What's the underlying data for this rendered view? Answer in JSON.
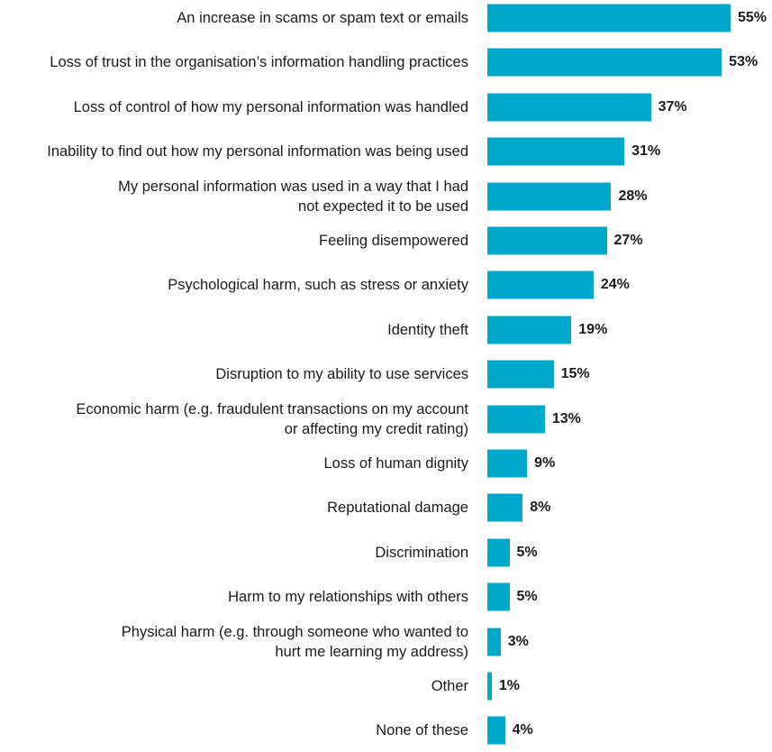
{
  "chart_data": {
    "type": "bar",
    "orientation": "horizontal",
    "color": "#00a8cc",
    "categories": [
      [
        "An increase in scams or spam text or emails"
      ],
      [
        "Loss of trust in the organisation’s information handling practices"
      ],
      [
        "Loss of control of how my personal information was handled"
      ],
      [
        "Inability to find out how my personal information was being used"
      ],
      [
        "My personal information was used in a way that I had",
        "not expected it to be used"
      ],
      [
        "Feeling disempowered"
      ],
      [
        "Psychological harm, such as stress or anxiety"
      ],
      [
        "Identity theft"
      ],
      [
        "Disruption to my ability to use services"
      ],
      [
        "Economic harm (e.g. fraudulent transactions on my account",
        "or affecting my credit rating)"
      ],
      [
        "Loss of human dignity"
      ],
      [
        "Reputational damage"
      ],
      [
        "Discrimination"
      ],
      [
        "Harm to my relationships with others"
      ],
      [
        "Physical harm (e.g. through someone who wanted to",
        "hurt me learning my address)"
      ],
      [
        "Other"
      ],
      [
        "None of these"
      ]
    ],
    "values": [
      55,
      53,
      37,
      31,
      28,
      27,
      24,
      19,
      15,
      13,
      9,
      8,
      5,
      5,
      3,
      1,
      4
    ],
    "value_labels": [
      "55%",
      "53%",
      "37%",
      "31%",
      "28%",
      "27%",
      "24%",
      "19%",
      "15%",
      "13%",
      "9%",
      "8%",
      "5%",
      "5%",
      "3%",
      "1%",
      "4%"
    ],
    "xlim": [
      0,
      55
    ]
  }
}
